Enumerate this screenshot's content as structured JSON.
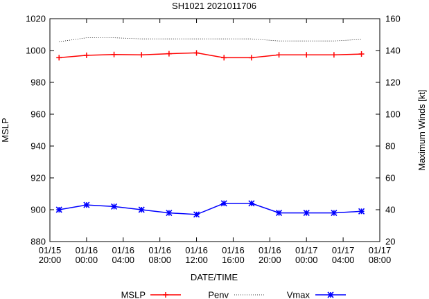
{
  "chart_data": {
    "type": "line",
    "title": "SH1021 2021011706",
    "xlabel": "DATE/TIME",
    "ylabel": "MSLP",
    "y2label": "Maximum Winds [kt]",
    "ylim": [
      880,
      1020
    ],
    "y2lim": [
      20,
      160
    ],
    "x_hours_range": [
      0,
      36
    ],
    "yticks": [
      "880",
      "900",
      "920",
      "940",
      "960",
      "980",
      "1000",
      "1020"
    ],
    "y2ticks": [
      "20",
      "40",
      "60",
      "80",
      "100",
      "120",
      "140",
      "160"
    ],
    "xticks": [
      {
        "date": "01/15",
        "time": "20:00"
      },
      {
        "date": "01/16",
        "time": "00:00"
      },
      {
        "date": "01/16",
        "time": "04:00"
      },
      {
        "date": "01/16",
        "time": "08:00"
      },
      {
        "date": "01/16",
        "time": "12:00"
      },
      {
        "date": "01/16",
        "time": "16:00"
      },
      {
        "date": "01/16",
        "time": "20:00"
      },
      {
        "date": "01/17",
        "time": "00:00"
      },
      {
        "date": "01/17",
        "time": "04:00"
      },
      {
        "date": "01/17",
        "time": "08:00"
      }
    ],
    "x_hours": [
      1,
      4,
      7,
      10,
      13,
      16,
      19,
      22,
      25,
      28,
      31,
      34
    ],
    "series": [
      {
        "name": "MSLP",
        "axis": "left",
        "color": "#ff0000",
        "marker": "plus",
        "style": "solid",
        "values": [
          995.5,
          997,
          997.5,
          997.3,
          998,
          998.5,
          995.5,
          995.5,
          997.3,
          997.3,
          997.3,
          997.8
        ]
      },
      {
        "name": "Penv",
        "axis": "left",
        "color": "#000000",
        "marker": "none",
        "style": "dotted",
        "values": [
          1005.5,
          1008,
          1008,
          1007.3,
          1007.3,
          1007.3,
          1007.3,
          1007.3,
          1006,
          1006,
          1006,
          1007
        ]
      },
      {
        "name": "Vmax",
        "axis": "right",
        "color": "#0000ff",
        "marker": "star",
        "style": "solid",
        "values": [
          40,
          43,
          42,
          40,
          38,
          37,
          44,
          44,
          38,
          38,
          38,
          39
        ]
      }
    ],
    "legend_position": "bottom",
    "legend": [
      "MSLP",
      "Penv",
      "Vmax"
    ]
  }
}
